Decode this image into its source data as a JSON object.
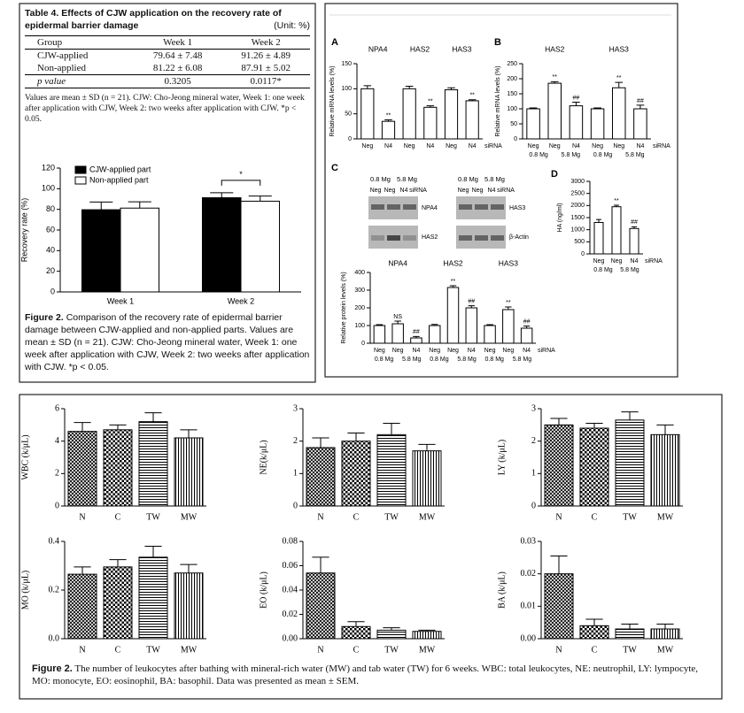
{
  "table4": {
    "label": "Table 4.",
    "title": "Effects of CJW application on the recovery rate of epidermal barrier damage",
    "unit": "(Unit: %)",
    "header": [
      "Group",
      "Week 1",
      "Week 2"
    ],
    "rows": [
      [
        "CJW-applied",
        "79.64 ± 7.48",
        "91.26 ± 4.89"
      ],
      [
        "Non-applied",
        "81.22 ± 6.08",
        "87.91 ± 5.02"
      ],
      [
        "p value",
        "0.3205",
        "0.0117*"
      ]
    ],
    "note": "Values are mean ± SD (n = 21). CJW: Cho-Jeong mineral water, Week 1: one week after application with CJW, Week 2: two weeks after application with CJW. *p < 0.05."
  },
  "figure2_top": {
    "label": "Figure 2.",
    "caption": "Comparison of the recovery rate of epidermal barrier damage between CJW-applied and non-applied parts. Values are mean ± SD (n = 21). CJW: Cho-Jeong mineral water, Week 1: one week after application with CJW, Week 2: two weeks after application with CJW. *p < 0.05."
  },
  "blot_panel": {
    "left": {
      "conditions": [
        "0.8 Mg",
        "5.8 Mg"
      ],
      "lanes": [
        "Neg",
        "Neg",
        "N4",
        "siRNA"
      ],
      "proteins": [
        "NPA4",
        "HAS2"
      ]
    },
    "right": {
      "conditions": [
        "0.8 Mg",
        "5.8 Mg"
      ],
      "lanes": [
        "Neg",
        "Neg",
        "N4",
        "siRNA"
      ],
      "proteins": [
        "HAS3",
        "β-Actin"
      ]
    }
  },
  "figure2_bottom": {
    "label": "Figure 2.",
    "caption": "The number of leukocytes after bathing with mineral-rich water (MW) and tab water (TW) for 6 weeks. WBC: total leukocytes, NE: neutrophil, LY: lympocyte, MO: monocyte, EO: eosinophil, BA: basophil. Data was presented as mean ± SEM."
  },
  "chart_data": [
    {
      "type": "bar",
      "y_label": "Recovery rate (%)",
      "categories": [
        "Week 1",
        "Week 2"
      ],
      "series": [
        {
          "name": "CJW-applied part",
          "color": "#000000",
          "values": [
            79.64,
            91.26
          ],
          "errors": [
            7.48,
            4.89
          ]
        },
        {
          "name": "Non-applied part",
          "color": "#ffffff",
          "values": [
            81.22,
            87.91
          ],
          "errors": [
            6.08,
            5.02
          ]
        }
      ],
      "ylim": [
        0,
        120
      ],
      "yticks": [
        0,
        20,
        40,
        60,
        80,
        100,
        120
      ],
      "legend": "top-left",
      "bracket_label": "*"
    },
    {
      "type": "bar",
      "panel": "A",
      "y_label": "Relative mRNA levels (%)",
      "groups": [
        "NPA4",
        "HAS2",
        "HAS3"
      ],
      "categories": [
        "Neg",
        "N4",
        "Neg",
        "N4",
        "Neg",
        "N4"
      ],
      "category_suffix": "siRNA",
      "values": [
        100,
        35,
        100,
        63,
        98,
        76
      ],
      "errors": [
        6,
        3,
        5,
        3,
        4,
        2
      ],
      "annotations": [
        null,
        "**",
        null,
        "**",
        null,
        "**"
      ],
      "color": "#ffffff",
      "ylim": [
        0,
        150
      ],
      "yticks": [
        0,
        50,
        100,
        150
      ]
    },
    {
      "type": "bar",
      "panel": "B",
      "y_label": "Relative mRNA levels (%)",
      "groups": [
        "HAS2",
        "HAS3"
      ],
      "categories": [
        "Neg",
        "Neg",
        "N4",
        "Neg",
        "Neg",
        "N4"
      ],
      "category_suffix": "siRNA",
      "conditions": [
        "0.8 Mg",
        "5.8 Mg",
        "0.8 Mg",
        "5.8 Mg"
      ],
      "values": [
        100,
        185,
        110,
        100,
        170,
        100
      ],
      "errors": [
        3,
        5,
        12,
        3,
        18,
        12
      ],
      "annotations": [
        null,
        "**",
        "##",
        null,
        "**",
        "##"
      ],
      "color": "#ffffff",
      "ylim": [
        0,
        250
      ],
      "yticks": [
        0,
        50,
        100,
        150,
        200,
        250
      ]
    },
    {
      "type": "bar",
      "panel": "C",
      "y_label": "Relative protein levels (%)",
      "groups": [
        "NPA4",
        "HAS2",
        "HAS3"
      ],
      "categories": [
        "Neg",
        "Neg",
        "N4",
        "Neg",
        "Neg",
        "N4",
        "Neg",
        "Neg",
        "N4"
      ],
      "category_suffix": "siRNA",
      "conditions": [
        "0.8 Mg",
        "5.8 Mg",
        "0.8 Mg",
        "5.8 Mg",
        "0.8 Mg",
        "5.8 Mg"
      ],
      "values": [
        100,
        110,
        30,
        100,
        315,
        200,
        100,
        190,
        85
      ],
      "errors": [
        5,
        15,
        8,
        6,
        10,
        12,
        5,
        15,
        12
      ],
      "annotations": [
        null,
        "NS",
        "##",
        null,
        "**",
        "##",
        null,
        "**",
        "##"
      ],
      "color": "#ffffff",
      "ylim": [
        0,
        400
      ],
      "yticks": [
        0,
        100,
        200,
        300,
        400
      ]
    },
    {
      "type": "bar",
      "panel": "D",
      "y_label": "HA (ng/ml)",
      "categories": [
        "Neg",
        "Neg",
        "N4"
      ],
      "category_suffix": "siRNA",
      "conditions": [
        "0.8 Mg",
        "5.8 Mg"
      ],
      "values": [
        1300,
        1950,
        1050
      ],
      "errors": [
        120,
        60,
        70
      ],
      "annotations": [
        null,
        "**",
        "##"
      ],
      "color": "#ffffff",
      "ylim": [
        0,
        3000
      ],
      "yticks": [
        0,
        500,
        1000,
        1500,
        2000,
        2500,
        3000
      ]
    },
    {
      "type": "bar",
      "y_label": "WBC (k/μL)",
      "categories": [
        "N",
        "C",
        "TW",
        "MW"
      ],
      "values": [
        4.6,
        4.7,
        5.2,
        4.2
      ],
      "errors": [
        0.55,
        0.3,
        0.55,
        0.5
      ],
      "patterns": [
        "crosshatch",
        "checker",
        "hlines",
        "vlines"
      ],
      "ylim": [
        0,
        6
      ],
      "yticks": [
        0,
        2,
        4,
        6
      ]
    },
    {
      "type": "bar",
      "y_label": "NE(k/μL)",
      "categories": [
        "N",
        "C",
        "TW",
        "MW"
      ],
      "values": [
        1.8,
        2.0,
        2.2,
        1.7
      ],
      "errors": [
        0.3,
        0.25,
        0.35,
        0.2
      ],
      "patterns": [
        "crosshatch",
        "checker",
        "hlines",
        "vlines"
      ],
      "ylim": [
        0,
        3
      ],
      "yticks": [
        0,
        1,
        2,
        3
      ]
    },
    {
      "type": "bar",
      "y_label": "LY (k/μL)",
      "categories": [
        "N",
        "C",
        "TW",
        "MW"
      ],
      "values": [
        2.5,
        2.4,
        2.65,
        2.2
      ],
      "errors": [
        0.2,
        0.15,
        0.25,
        0.3
      ],
      "patterns": [
        "crosshatch",
        "checker",
        "hlines",
        "vlines"
      ],
      "ylim": [
        0,
        3
      ],
      "yticks": [
        0,
        1,
        2,
        3
      ]
    },
    {
      "type": "bar",
      "y_label": "MO (k/μL)",
      "categories": [
        "N",
        "C",
        "TW",
        "MW"
      ],
      "values": [
        0.265,
        0.295,
        0.335,
        0.27
      ],
      "errors": [
        0.03,
        0.03,
        0.045,
        0.035
      ],
      "patterns": [
        "crosshatch",
        "checker",
        "hlines",
        "vlines"
      ],
      "ylim": [
        0,
        0.4
      ],
      "yticks": [
        {
          "value": 0,
          "label": "0.0"
        },
        0.2,
        0.4
      ]
    },
    {
      "type": "bar",
      "y_label": "EO (k/μL)",
      "categories": [
        "N",
        "C",
        "TW",
        "MW"
      ],
      "values": [
        0.054,
        0.01,
        0.007,
        0.006
      ],
      "errors": [
        0.013,
        0.004,
        0.002,
        0.001
      ],
      "patterns": [
        "crosshatch",
        "checker",
        "hlines",
        "vlines"
      ],
      "ylim": [
        0,
        0.08
      ],
      "yticks": [
        {
          "value": 0,
          "label": "0.00"
        },
        0.02,
        0.04,
        0.06,
        0.08
      ]
    },
    {
      "type": "bar",
      "y_label": "BA (k/μL)",
      "categories": [
        "N",
        "C",
        "TW",
        "MW"
      ],
      "values": [
        0.02,
        0.004,
        0.003,
        0.003
      ],
      "errors": [
        0.0055,
        0.002,
        0.0015,
        0.0015
      ],
      "patterns": [
        "crosshatch",
        "checker",
        "hlines",
        "vlines"
      ],
      "ylim": [
        0,
        0.03
      ],
      "yticks": [
        {
          "value": 0,
          "label": "0.00"
        },
        0.01,
        0.02,
        0.03
      ]
    }
  ]
}
